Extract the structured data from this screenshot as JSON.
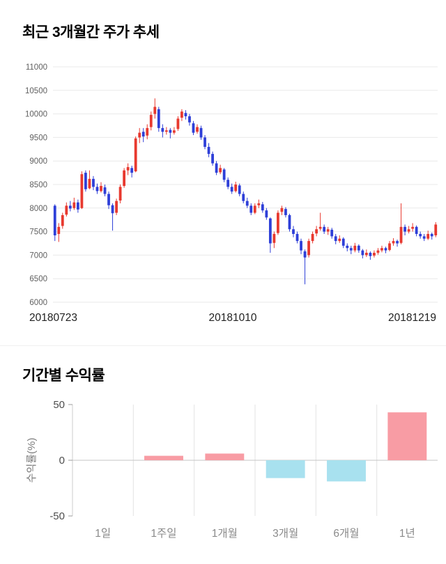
{
  "section_price": {
    "title": "최근 3개월간 주가 추세"
  },
  "section_returns": {
    "title": "기간별 수익률"
  },
  "chart_data": [
    {
      "type": "candlestick",
      "title": "최근 3개월간 주가 추세",
      "ylim": [
        6000,
        11000
      ],
      "y_ticks": [
        6000,
        6500,
        7000,
        7500,
        8000,
        8500,
        9000,
        9500,
        10000,
        10500,
        11000
      ],
      "x_labels": [
        "20180723",
        "20181010",
        "20181219"
      ],
      "up_color": "#e8392f",
      "down_color": "#2e3fd8",
      "grid": true,
      "ohlc": [
        [
          8050,
          8080,
          7300,
          7420
        ],
        [
          7450,
          7680,
          7280,
          7600
        ],
        [
          7620,
          7900,
          7560,
          7850
        ],
        [
          7860,
          8120,
          7820,
          8050
        ],
        [
          8050,
          8150,
          7930,
          7990
        ],
        [
          8000,
          8220,
          7960,
          8120
        ],
        [
          8120,
          8180,
          7900,
          7970
        ],
        [
          8000,
          8780,
          7980,
          8720
        ],
        [
          8750,
          8800,
          8350,
          8400
        ],
        [
          8420,
          8800,
          8400,
          8620
        ],
        [
          8620,
          8680,
          8380,
          8450
        ],
        [
          8450,
          8520,
          8300,
          8360
        ],
        [
          8360,
          8550,
          8330,
          8470
        ],
        [
          8440,
          8500,
          8250,
          8300
        ],
        [
          8300,
          8350,
          7980,
          8060
        ],
        [
          8060,
          8100,
          7520,
          7890
        ],
        [
          7900,
          8200,
          7850,
          8150
        ],
        [
          8160,
          8500,
          8100,
          8450
        ],
        [
          8470,
          8850,
          8430,
          8800
        ],
        [
          8800,
          8950,
          8700,
          8870
        ],
        [
          8850,
          8900,
          8650,
          8750
        ],
        [
          8780,
          9520,
          8760,
          9480
        ],
        [
          9500,
          9700,
          9380,
          9600
        ],
        [
          9620,
          9700,
          9400,
          9520
        ],
        [
          9540,
          9780,
          9460,
          9700
        ],
        [
          9720,
          10050,
          9650,
          9980
        ],
        [
          10000,
          10330,
          9900,
          10150
        ],
        [
          10100,
          10150,
          9620,
          9700
        ],
        [
          9700,
          9780,
          9500,
          9620
        ],
        [
          9620,
          9720,
          9560,
          9650
        ],
        [
          9660,
          9700,
          9480,
          9600
        ],
        [
          9600,
          9720,
          9560,
          9650
        ],
        [
          9680,
          9950,
          9640,
          9900
        ],
        [
          9920,
          10100,
          9850,
          10050
        ],
        [
          10020,
          10080,
          9880,
          9950
        ],
        [
          9950,
          10000,
          9750,
          9820
        ],
        [
          9800,
          9850,
          9550,
          9600
        ],
        [
          9620,
          9780,
          9580,
          9720
        ],
        [
          9700,
          9750,
          9450,
          9500
        ],
        [
          9500,
          9550,
          9250,
          9300
        ],
        [
          9300,
          9380,
          9080,
          9150
        ],
        [
          9150,
          9200,
          8900,
          8950
        ],
        [
          8950,
          9000,
          8700,
          8750
        ],
        [
          8760,
          8920,
          8720,
          8850
        ],
        [
          8820,
          8850,
          8550,
          8600
        ],
        [
          8600,
          8650,
          8400,
          8450
        ],
        [
          8450,
          8520,
          8300,
          8350
        ],
        [
          8360,
          8560,
          8330,
          8500
        ],
        [
          8480,
          8520,
          8250,
          8300
        ],
        [
          8300,
          8350,
          8100,
          8150
        ],
        [
          8150,
          8220,
          8000,
          8050
        ],
        [
          8050,
          8100,
          7850,
          7900
        ],
        [
          7900,
          8100,
          7870,
          8050
        ],
        [
          8060,
          8180,
          8000,
          8100
        ],
        [
          8080,
          8130,
          7900,
          7950
        ],
        [
          7950,
          8000,
          7750,
          7800
        ],
        [
          7780,
          7800,
          7050,
          7250
        ],
        [
          7260,
          7500,
          7150,
          7450
        ],
        [
          7470,
          7950,
          7430,
          7900
        ],
        [
          7920,
          8050,
          7850,
          8000
        ],
        [
          7980,
          8020,
          7800,
          7850
        ],
        [
          7850,
          7880,
          7500,
          7550
        ],
        [
          7550,
          7620,
          7380,
          7450
        ],
        [
          7450,
          7500,
          7250,
          7300
        ],
        [
          7300,
          7350,
          7020,
          7100
        ],
        [
          7080,
          7120,
          6380,
          6950
        ],
        [
          7000,
          7350,
          6950,
          7300
        ],
        [
          7300,
          7500,
          7250,
          7450
        ],
        [
          7460,
          7620,
          7400,
          7550
        ],
        [
          7560,
          7900,
          7520,
          7600
        ],
        [
          7600,
          7650,
          7450,
          7500
        ],
        [
          7500,
          7600,
          7430,
          7550
        ],
        [
          7540,
          7580,
          7350,
          7400
        ],
        [
          7400,
          7450,
          7230,
          7300
        ],
        [
          7300,
          7420,
          7260,
          7350
        ],
        [
          7350,
          7380,
          7150,
          7200
        ],
        [
          7200,
          7250,
          7080,
          7150
        ],
        [
          7150,
          7200,
          7020,
          7100
        ],
        [
          7100,
          7260,
          7060,
          7200
        ],
        [
          7200,
          7230,
          7050,
          7100
        ],
        [
          7100,
          7130,
          6930,
          7000
        ],
        [
          7000,
          7120,
          6960,
          7050
        ],
        [
          7050,
          7080,
          6900,
          6980
        ],
        [
          6990,
          7100,
          6950,
          7050
        ],
        [
          7050,
          7150,
          7010,
          7100
        ],
        [
          7100,
          7200,
          7060,
          7150
        ],
        [
          7150,
          7180,
          7040,
          7100
        ],
        [
          7110,
          7300,
          7080,
          7250
        ],
        [
          7250,
          7360,
          7200,
          7300
        ],
        [
          7300,
          7330,
          7180,
          7250
        ],
        [
          7260,
          8100,
          7230,
          7600
        ],
        [
          7600,
          7650,
          7420,
          7500
        ],
        [
          7500,
          7620,
          7460,
          7550
        ],
        [
          7560,
          7680,
          7500,
          7600
        ],
        [
          7600,
          7630,
          7400,
          7450
        ],
        [
          7450,
          7500,
          7350,
          7400
        ],
        [
          7400,
          7450,
          7300,
          7350
        ],
        [
          7350,
          7520,
          7320,
          7450
        ],
        [
          7450,
          7480,
          7330,
          7400
        ],
        [
          7420,
          7700,
          7380,
          7650
        ]
      ]
    },
    {
      "type": "bar",
      "title": "기간별 수익률",
      "categories": [
        "1일",
        "1주일",
        "1개월",
        "3개월",
        "6개월",
        "1년"
      ],
      "values": [
        0,
        4,
        6,
        -16,
        -19,
        43
      ],
      "ylabel": "수익률(%)",
      "ylim": [
        -50,
        50
      ],
      "y_ticks": [
        50,
        0,
        -50
      ],
      "positive_color": "#f89ca4",
      "negative_color": "#a8e1ef",
      "legend": false
    }
  ]
}
